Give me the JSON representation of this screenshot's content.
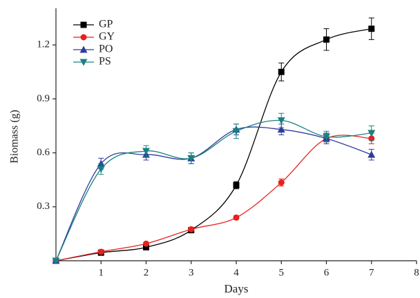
{
  "chart_data": {
    "type": "line",
    "xlabel": "Days",
    "ylabel": "Biomass (g)",
    "x": [
      0,
      1,
      2,
      3,
      4,
      5,
      6,
      7
    ],
    "xlim": [
      0,
      8
    ],
    "xticks": [
      1,
      2,
      3,
      4,
      5,
      6,
      7,
      8
    ],
    "ylim": [
      0,
      1.4
    ],
    "yticks": [
      0.3,
      0.6,
      0.9,
      1.2
    ],
    "legend": "upper left",
    "smooth": true,
    "series": [
      {
        "name": "GP",
        "color": "#000000",
        "marker": "square",
        "values": [
          0.0,
          0.045,
          0.075,
          0.17,
          0.42,
          1.05,
          1.23,
          1.29
        ],
        "errors": [
          0.005,
          0.005,
          0.005,
          0.01,
          0.02,
          0.05,
          0.06,
          0.06
        ]
      },
      {
        "name": "GY",
        "color": "#e8201e",
        "marker": "circle",
        "values": [
          0.0,
          0.05,
          0.095,
          0.175,
          0.24,
          0.435,
          0.68,
          0.68
        ],
        "errors": [
          0.005,
          0.005,
          0.005,
          0.01,
          0.01,
          0.02,
          0.02,
          0.03
        ]
      },
      {
        "name": "PO",
        "color": "#2d3ba0",
        "marker": "triangle-up",
        "values": [
          0.0,
          0.54,
          0.59,
          0.57,
          0.73,
          0.73,
          0.68,
          0.59
        ],
        "errors": [
          0.005,
          0.03,
          0.03,
          0.03,
          0.03,
          0.03,
          0.03,
          0.03
        ]
      },
      {
        "name": "PS",
        "color": "#1a8080",
        "marker": "triangle-down",
        "values": [
          0.0,
          0.51,
          0.61,
          0.57,
          0.72,
          0.78,
          0.69,
          0.71
        ],
        "errors": [
          0.005,
          0.03,
          0.03,
          0.03,
          0.04,
          0.04,
          0.03,
          0.04
        ]
      }
    ]
  }
}
